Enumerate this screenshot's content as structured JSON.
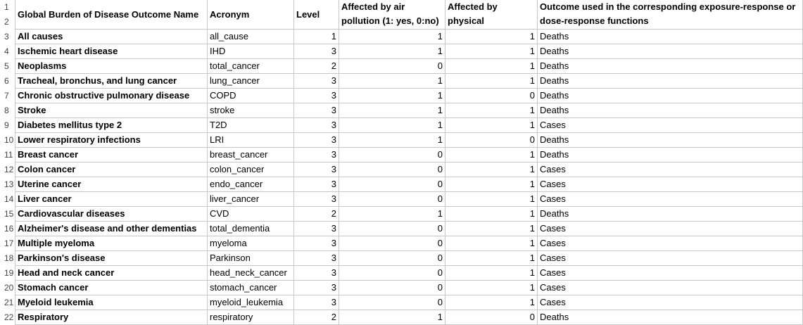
{
  "header": {
    "col_a": "Global Burden of Disease Outcome Name",
    "col_b": "Acronym",
    "col_c": "Level",
    "col_d_line1": "Affected by air",
    "col_d_line2": "pollution (1: yes, 0:no)",
    "col_e_line1": "Affected by",
    "col_e_line2": "physical",
    "col_f_line1": "Outcome used in the corresponding exposure-response or",
    "col_f_line2": "dose-response functions"
  },
  "header_row_numbers": [
    "1",
    "2"
  ],
  "rows": [
    {
      "num": "3",
      "name": "All causes",
      "acronym": "all_cause",
      "level": "1",
      "air": "1",
      "physical": "1",
      "outcome": "Deaths"
    },
    {
      "num": "4",
      "name": "Ischemic heart disease",
      "acronym": "IHD",
      "level": "3",
      "air": "1",
      "physical": "1",
      "outcome": "Deaths"
    },
    {
      "num": "5",
      "name": "Neoplasms",
      "acronym": "total_cancer",
      "level": "2",
      "air": "0",
      "physical": "1",
      "outcome": "Deaths"
    },
    {
      "num": "6",
      "name": "Tracheal, bronchus, and lung cancer",
      "acronym": "lung_cancer",
      "level": "3",
      "air": "1",
      "physical": "1",
      "outcome": "Deaths"
    },
    {
      "num": "7",
      "name": "Chronic obstructive pulmonary disease",
      "acronym": "COPD",
      "level": "3",
      "air": "1",
      "physical": "0",
      "outcome": "Deaths"
    },
    {
      "num": "8",
      "name": "Stroke",
      "acronym": "stroke",
      "level": "3",
      "air": "1",
      "physical": "1",
      "outcome": "Deaths"
    },
    {
      "num": "9",
      "name": "Diabetes mellitus type 2",
      "acronym": "T2D",
      "level": "3",
      "air": "1",
      "physical": "1",
      "outcome": "Cases"
    },
    {
      "num": "10",
      "name": "Lower respiratory infections",
      "acronym": "LRI",
      "level": "3",
      "air": "1",
      "physical": "0",
      "outcome": "Deaths"
    },
    {
      "num": "11",
      "name": "Breast cancer",
      "acronym": "breast_cancer",
      "level": "3",
      "air": "0",
      "physical": "1",
      "outcome": "Deaths"
    },
    {
      "num": "12",
      "name": "Colon cancer",
      "acronym": "colon_cancer",
      "level": "3",
      "air": "0",
      "physical": "1",
      "outcome": "Cases"
    },
    {
      "num": "13",
      "name": "Uterine cancer",
      "acronym": "endo_cancer",
      "level": "3",
      "air": "0",
      "physical": "1",
      "outcome": "Cases"
    },
    {
      "num": "14",
      "name": "Liver cancer",
      "acronym": "liver_cancer",
      "level": "3",
      "air": "0",
      "physical": "1",
      "outcome": "Cases"
    },
    {
      "num": "15",
      "name": "Cardiovascular diseases",
      "acronym": "CVD",
      "level": "2",
      "air": "1",
      "physical": "1",
      "outcome": "Deaths"
    },
    {
      "num": "16",
      "name": "Alzheimer's disease and other dementias",
      "acronym": "total_dementia",
      "level": "3",
      "air": "0",
      "physical": "1",
      "outcome": "Cases"
    },
    {
      "num": "17",
      "name": "Multiple myeloma",
      "acronym": "myeloma",
      "level": "3",
      "air": "0",
      "physical": "1",
      "outcome": "Cases"
    },
    {
      "num": "18",
      "name": "Parkinson's disease",
      "acronym": "Parkinson",
      "level": "3",
      "air": "0",
      "physical": "1",
      "outcome": "Cases"
    },
    {
      "num": "19",
      "name": "Head and neck cancer",
      "acronym": "head_neck_cancer",
      "level": "3",
      "air": "0",
      "physical": "1",
      "outcome": "Cases"
    },
    {
      "num": "20",
      "name": "Stomach cancer",
      "acronym": "stomach_cancer",
      "level": "3",
      "air": "0",
      "physical": "1",
      "outcome": "Cases"
    },
    {
      "num": "21",
      "name": "Myeloid leukemia",
      "acronym": "myeloid_leukemia",
      "level": "3",
      "air": "0",
      "physical": "1",
      "outcome": "Cases"
    },
    {
      "num": "22",
      "name": "Respiratory",
      "acronym": "respiratory",
      "level": "2",
      "air": "1",
      "physical": "0",
      "outcome": "Deaths"
    }
  ]
}
